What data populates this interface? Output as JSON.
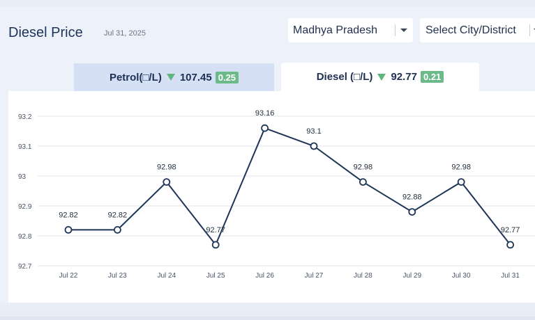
{
  "header": {
    "title": "Diesel Price",
    "date": "Jul 31, 2025"
  },
  "filters": {
    "state_value": "Madhya Pradesh",
    "city_placeholder": "Select City/District"
  },
  "tabs": [
    {
      "label": "Petrol(□/L)",
      "price": "107.45",
      "change": "0.25",
      "active": false
    },
    {
      "label": "Diesel (□/L)",
      "price": "92.77",
      "change": "0.21",
      "active": true
    }
  ],
  "colors": {
    "line": "#1e3458",
    "badge": "#6cb98a",
    "down_arrow": "#5eb57d"
  },
  "chart_data": {
    "type": "line",
    "title": "",
    "xlabel": "",
    "ylabel": "",
    "categories": [
      "Jul 22",
      "Jul 23",
      "Jul 24",
      "Jul 25",
      "Jul 26",
      "Jul 27",
      "Jul 28",
      "Jul 29",
      "Jul 30",
      "Jul 31"
    ],
    "series": [
      {
        "name": "Diesel",
        "values": [
          92.82,
          92.82,
          92.98,
          92.77,
          93.16,
          93.1,
          92.98,
          92.88,
          92.98,
          92.77
        ]
      }
    ],
    "data_labels": [
      "92.82",
      "92.82",
      "92.98",
      "92.77",
      "93.16",
      "93.1",
      "92.98",
      "92.88",
      "92.98",
      "92.77"
    ],
    "yticks": [
      92.7,
      92.8,
      92.9,
      93,
      93.1,
      93.2
    ],
    "ytick_labels": [
      "92.7",
      "92.8",
      "92.9",
      "93",
      "93.1",
      "93.2"
    ],
    "ylim": [
      92.7,
      93.2
    ],
    "grid": true
  }
}
